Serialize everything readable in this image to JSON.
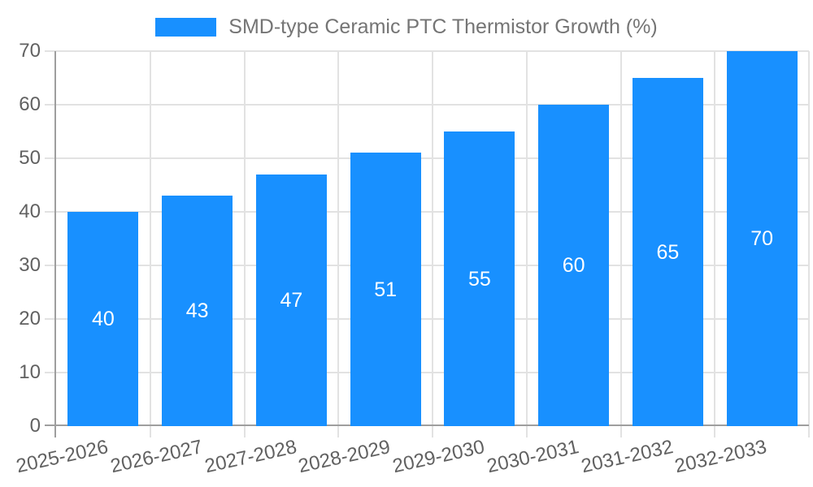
{
  "colors": {
    "bar": "#1890ff",
    "grid": "#e2e2e2",
    "axis": "#9e9e9e",
    "axis_label_text": "#616161",
    "legend_text": "#757575",
    "bar_value_text": "#ffffff",
    "background": "#ffffff"
  },
  "legend": {
    "label": "SMD-type Ceramic PTC Thermistor Growth (%)"
  },
  "chart_data": {
    "type": "bar",
    "title": "SMD-type Ceramic PTC Thermistor Growth (%)",
    "categories": [
      "2025-2026",
      "2026-2027",
      "2027-2028",
      "2028-2029",
      "2029-2030",
      "2030-2031",
      "2031-2032",
      "2032-2033"
    ],
    "values": [
      40,
      43,
      47,
      51,
      55,
      60,
      65,
      70
    ],
    "xlabel": "",
    "ylabel": "",
    "ylim": [
      0,
      70
    ],
    "yticks": [
      0,
      10,
      20,
      30,
      40,
      50,
      60,
      70
    ],
    "grid": true,
    "legend_position": "top-center",
    "bar_label_position": "inside-middle",
    "x_tick_label_rotation_deg": -12.5
  }
}
